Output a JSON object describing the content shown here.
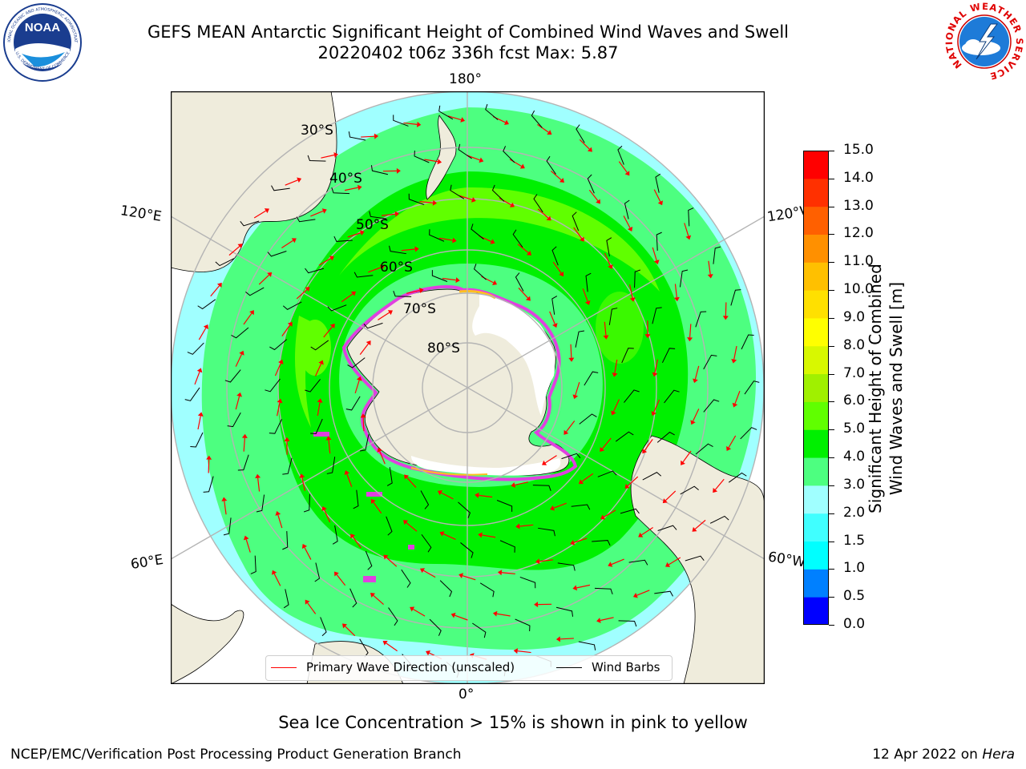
{
  "title": {
    "line1": "GEFS MEAN Antarctic Significant Height of Combined Wind Waves and Swell",
    "line2": "20220402 t06z 336h fcst   Max: 5.87"
  },
  "logos": {
    "left_icon": "noaa-logo-icon",
    "left_text": "NOAA",
    "left_ring_top": "NATIONAL OCEANIC AND ATMOSPHERIC ADMINISTRATION",
    "left_ring_bottom": "U.S. DEPARTMENT OF COMMERCE",
    "right_icon": "nws-logo-icon",
    "right_ring": "NATIONAL WEATHER SERVICE"
  },
  "map": {
    "projection": "south-polar-stereographic",
    "meridian_labels": {
      "top": "180°",
      "bottom": "0°",
      "left_upper": "120°E",
      "left_lower": "60°E",
      "right_upper": "120°W",
      "right_lower": "60°W"
    },
    "parallel_labels": [
      "30°S",
      "40°S",
      "50°S",
      "60°S",
      "70°S",
      "80°S"
    ],
    "colors": {
      "land": "#efecdc",
      "ice": "#ffffff",
      "ice_edge": "#e040e0",
      "ice_edge_yellow": "#ffc020",
      "grid": "#b4b4b4",
      "arrow": "#ff0000",
      "barb": "#000000"
    }
  },
  "legend": {
    "placement": "bottom-center",
    "items": [
      {
        "label": "Primary Wave Direction (unscaled)",
        "color": "#ff0000"
      },
      {
        "label": "Wind Barbs",
        "color": "#000000"
      }
    ]
  },
  "colorbar": {
    "title_line1": "Significant Height of Combined",
    "title_line2": "Wind Waves and Swell [m]",
    "ticks": [
      "0.0",
      "0.5",
      "1.0",
      "1.5",
      "2.0",
      "3.0",
      "4.0",
      "5.0",
      "6.0",
      "7.0",
      "8.0",
      "9.0",
      "10.0",
      "11.0",
      "12.0",
      "13.0",
      "14.0",
      "15.0"
    ],
    "colors": [
      "#0000ff",
      "#0080ff",
      "#00ffff",
      "#40ffff",
      "#a0ffff",
      "#4dff80",
      "#00f000",
      "#60ff00",
      "#a0f000",
      "#d8f800",
      "#ffff00",
      "#ffe000",
      "#ffc000",
      "#ff9000",
      "#ff6000",
      "#ff3000",
      "#ff0000"
    ]
  },
  "caption": "Sea Ice Concentration > 15% is shown in pink to yellow",
  "footer": {
    "left": "NCEP/EMC/Verification Post Processing Product Generation Branch",
    "date": "12 Apr 2022 on ",
    "machine": "Hera"
  }
}
